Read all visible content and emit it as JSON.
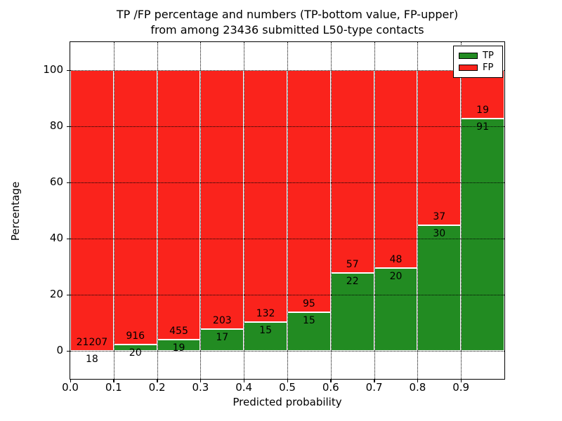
{
  "chart_data": {
    "type": "bar",
    "stacked": true,
    "title": "TP /FP percentage and numbers (TP-bottom value, FP-upper)\nfrom among 23436 submitted L50-type contacts",
    "xlabel": "Predicted probability",
    "ylabel": "Percentage",
    "total_contacts": 23436,
    "bins": [
      "0.0-0.1",
      "0.1-0.2",
      "0.2-0.3",
      "0.3-0.4",
      "0.4-0.5",
      "0.5-0.6",
      "0.6-0.7",
      "0.7-0.8",
      "0.8-0.9",
      "0.9-1.0"
    ],
    "x_tick_labels": [
      "0.0",
      "0.1",
      "0.2",
      "0.3",
      "0.4",
      "0.5",
      "0.6",
      "0.7",
      "0.8",
      "0.9"
    ],
    "y_tick_values": [
      0,
      20,
      40,
      60,
      80,
      100
    ],
    "xlim": [
      0.0,
      1.0
    ],
    "ylim": [
      -10,
      110
    ],
    "grid": true,
    "grid_style": "dotted",
    "legend_position": "upper right",
    "series": [
      {
        "name": "TP",
        "color": "#228b22",
        "counts": [
          18,
          20,
          19,
          17,
          15,
          15,
          22,
          20,
          30,
          91
        ],
        "percent": [
          0.08,
          2.14,
          4.01,
          7.73,
          10.2,
          13.64,
          27.85,
          29.41,
          44.78,
          82.73
        ]
      },
      {
        "name": "FP",
        "color": "#fa231c",
        "counts": [
          21207,
          916,
          455,
          203,
          132,
          95,
          57,
          48,
          37,
          19
        ],
        "percent": [
          99.92,
          97.86,
          95.99,
          92.27,
          89.8,
          86.36,
          72.15,
          70.59,
          55.22,
          17.27
        ]
      }
    ]
  }
}
